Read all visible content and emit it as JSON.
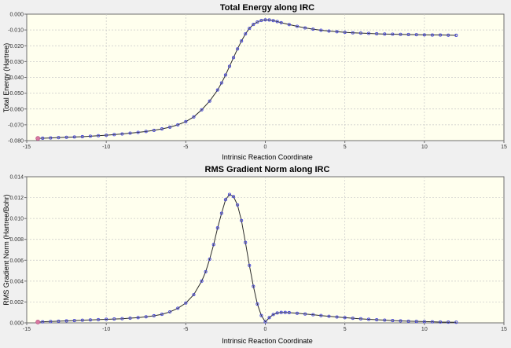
{
  "chart_data": [
    {
      "type": "line",
      "title": "Total Energy along IRC",
      "xlabel": "Intrinsic Reaction Coordinate",
      "ylabel": "Total Energy (Hartree)",
      "xlim": [
        -15,
        15
      ],
      "ylim": [
        -0.08,
        0.0
      ],
      "xticks": [
        -15,
        -10,
        -5,
        0,
        5,
        10,
        15
      ],
      "xtick_labels": [
        "-15",
        "-10",
        "-5",
        "0",
        "5",
        "10",
        "15"
      ],
      "yticks": [
        0.0,
        -0.01,
        -0.02,
        -0.03,
        -0.04,
        -0.05,
        -0.06,
        -0.07,
        -0.08
      ],
      "ytick_labels": [
        "0.000",
        "-0.010",
        "-0.020",
        "-0.030",
        "-0.040",
        "-0.050",
        "-0.060",
        "-0.070",
        "-0.080"
      ],
      "grid": true,
      "highlight_point": {
        "x": -14.3,
        "y": -0.0786
      },
      "series": [
        {
          "x": [
            -14.3,
            -14.0,
            -13.5,
            -13.0,
            -12.5,
            -12.0,
            -11.5,
            -11.0,
            -10.5,
            -10.0,
            -9.5,
            -9.0,
            -8.5,
            -8.0,
            -7.5,
            -7.0,
            -6.5,
            -6.0,
            -5.5,
            -5.0,
            -4.5,
            -4.0,
            -3.5,
            -3.0,
            -2.75,
            -2.5,
            -2.25,
            -2.0,
            -1.75,
            -1.5,
            -1.25,
            -1.0,
            -0.75,
            -0.5,
            -0.25,
            0.0,
            0.25,
            0.5,
            0.75,
            1.0,
            1.5,
            2.0,
            2.5,
            3.0,
            3.5,
            4.0,
            4.5,
            5.0,
            5.5,
            6.0,
            6.5,
            7.0,
            7.5,
            8.0,
            8.5,
            9.0,
            9.5,
            10.0,
            10.5,
            11.0,
            11.5,
            12.0
          ],
          "y": [
            -0.0786,
            -0.0785,
            -0.0783,
            -0.0781,
            -0.0779,
            -0.0777,
            -0.0775,
            -0.0772,
            -0.0769,
            -0.0766,
            -0.0762,
            -0.0758,
            -0.0753,
            -0.0748,
            -0.0742,
            -0.0735,
            -0.0726,
            -0.0715,
            -0.07,
            -0.068,
            -0.065,
            -0.0605,
            -0.055,
            -0.048,
            -0.0435,
            -0.0385,
            -0.033,
            -0.0275,
            -0.022,
            -0.017,
            -0.0125,
            -0.009,
            -0.0065,
            -0.005,
            -0.004,
            -0.0036,
            -0.0037,
            -0.0041,
            -0.0047,
            -0.0054,
            -0.0066,
            -0.0077,
            -0.0087,
            -0.0095,
            -0.0102,
            -0.0107,
            -0.0111,
            -0.0115,
            -0.0118,
            -0.012,
            -0.0122,
            -0.0124,
            -0.0126,
            -0.0127,
            -0.0128,
            -0.0129,
            -0.013,
            -0.0131,
            -0.0132,
            -0.0132,
            -0.0133,
            -0.0134
          ]
        }
      ]
    },
    {
      "type": "line",
      "title": "RMS Gradient Norm along IRC",
      "xlabel": "Intrinsic Reaction Coordinate",
      "ylabel": "RMS Gradient Norm (Hartree/Bohr)",
      "xlim": [
        -15,
        15
      ],
      "ylim": [
        0.0,
        0.014
      ],
      "xticks": [
        -15,
        -10,
        -5,
        0,
        5,
        10,
        15
      ],
      "xtick_labels": [
        "-15",
        "-10",
        "-5",
        "0",
        "5",
        "10",
        "15"
      ],
      "yticks": [
        0.0,
        0.002,
        0.004,
        0.006,
        0.008,
        0.01,
        0.012,
        0.014
      ],
      "ytick_labels": [
        "0.000",
        "0.002",
        "0.004",
        "0.006",
        "0.008",
        "0.010",
        "0.012",
        "0.014"
      ],
      "grid": true,
      "highlight_point": {
        "x": -14.3,
        "y": 8e-05
      },
      "series": [
        {
          "x": [
            -14.3,
            -14.0,
            -13.5,
            -13.0,
            -12.5,
            -12.0,
            -11.5,
            -11.0,
            -10.5,
            -10.0,
            -9.5,
            -9.0,
            -8.5,
            -8.0,
            -7.5,
            -7.0,
            -6.5,
            -6.0,
            -5.5,
            -5.0,
            -4.5,
            -4.0,
            -3.75,
            -3.5,
            -3.25,
            -3.0,
            -2.75,
            -2.5,
            -2.25,
            -2.0,
            -1.75,
            -1.5,
            -1.25,
            -1.0,
            -0.75,
            -0.5,
            -0.25,
            0.0,
            0.25,
            0.5,
            0.75,
            1.0,
            1.25,
            1.5,
            2.0,
            2.5,
            3.0,
            3.5,
            4.0,
            4.5,
            5.0,
            5.5,
            6.0,
            6.5,
            7.0,
            7.5,
            8.0,
            8.5,
            9.0,
            9.5,
            10.0,
            10.5,
            11.0,
            11.5,
            12.0
          ],
          "y": [
            8e-05,
            0.0001,
            0.00013,
            0.00016,
            0.00019,
            0.00022,
            0.00025,
            0.00028,
            0.00031,
            0.00034,
            0.00037,
            0.0004,
            0.00045,
            0.0005,
            0.00058,
            0.00068,
            0.00082,
            0.00105,
            0.0014,
            0.0019,
            0.0027,
            0.004,
            0.0049,
            0.0061,
            0.0075,
            0.0091,
            0.0105,
            0.0118,
            0.0123,
            0.0121,
            0.0113,
            0.0098,
            0.0077,
            0.0055,
            0.0035,
            0.0018,
            0.0007,
            0.0001,
            0.0005,
            0.0008,
            0.00095,
            0.001,
            0.001,
            0.00098,
            0.00092,
            0.00085,
            0.00078,
            0.0007,
            0.00063,
            0.00056,
            0.0005,
            0.00044,
            0.00039,
            0.00034,
            0.0003,
            0.00026,
            0.00022,
            0.00019,
            0.00016,
            0.00014,
            0.00012,
            0.0001,
            8e-05,
            7e-05,
            6e-05
          ]
        }
      ]
    }
  ],
  "colors": {
    "plot_background": "#ffffee",
    "line": "#2a2a2a",
    "marker": "#4848d8",
    "highlight": "#d878a0",
    "grid": "#c8c8c8",
    "window_background": "#f0f0f0"
  }
}
